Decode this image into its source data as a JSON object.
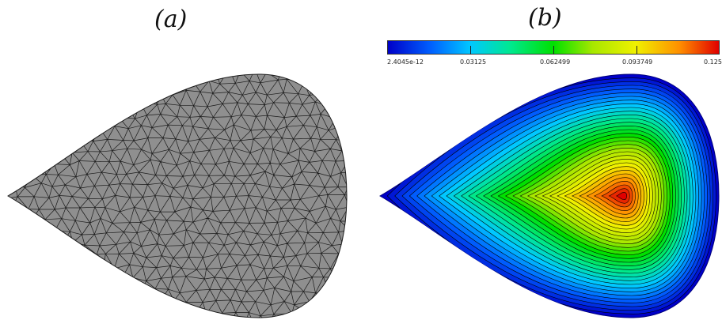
{
  "panels": {
    "a": {
      "label": "(a)"
    },
    "b": {
      "label": "(b)"
    }
  },
  "colorbar": {
    "ticks": [
      "2.4045e-12",
      "0.03125",
      "0.062499",
      "0.093749",
      "0.125"
    ],
    "colors": [
      "#0000c8",
      "#00c8ff",
      "#00e000",
      "#f0f000",
      "#e00000"
    ]
  },
  "colors": {
    "mesh_fill": "#8f8f8f",
    "mesh_edge": "#1a1a1a",
    "contour_line": "#000000"
  }
}
